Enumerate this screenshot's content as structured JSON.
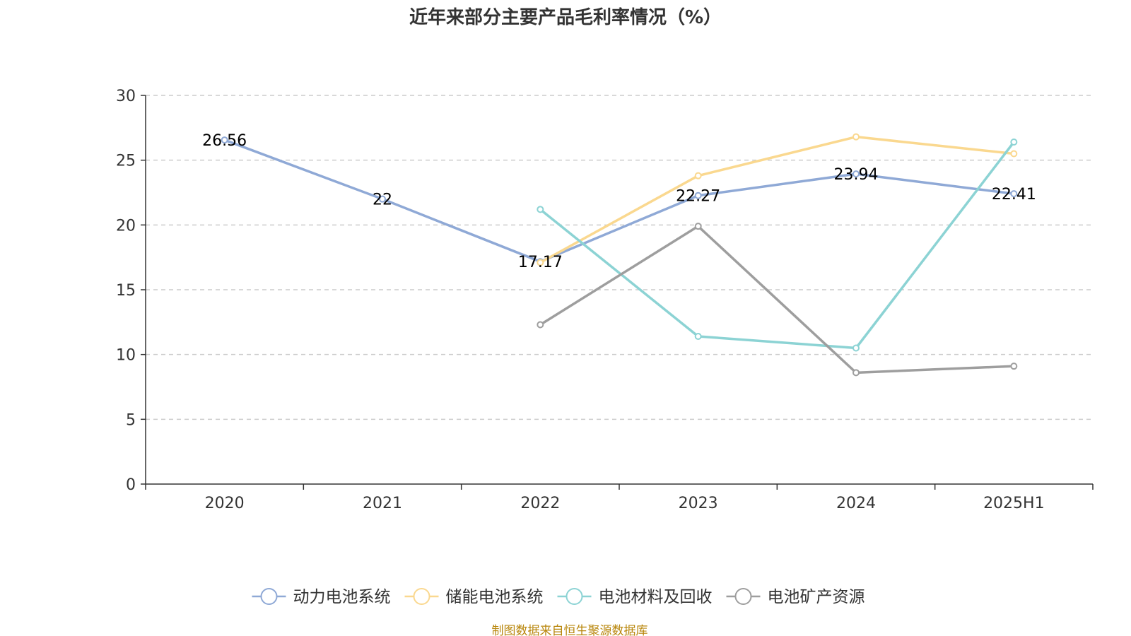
{
  "chart_data": {
    "type": "line",
    "title": "近年来部分主要产品毛利率情况（%）",
    "categories": [
      "2020",
      "2021",
      "2022",
      "2023",
      "2024",
      "2025H1"
    ],
    "ylim": [
      0,
      30
    ],
    "yticks": [
      0,
      5,
      10,
      15,
      20,
      25,
      30
    ],
    "grid": true,
    "legend_position": "bottom",
    "series": [
      {
        "name": "动力电池系统",
        "color": "#8fa9d6",
        "values": [
          26.56,
          22,
          17.17,
          22.27,
          23.94,
          22.41
        ],
        "labels": [
          "26.56",
          "22",
          "17.17",
          "22.27",
          "23.94",
          "22.41"
        ]
      },
      {
        "name": "储能电池系统",
        "color": "#fad88f",
        "values": [
          null,
          null,
          17.1,
          23.8,
          26.8,
          25.5
        ]
      },
      {
        "name": "电池材料及回收",
        "color": "#8cd3d4",
        "values": [
          null,
          null,
          21.2,
          11.4,
          10.5,
          26.4
        ]
      },
      {
        "name": "电池矿产资源",
        "color": "#9e9e9e",
        "values": [
          null,
          null,
          12.3,
          19.9,
          8.6,
          9.1
        ]
      }
    ],
    "source": "制图数据来自恒生聚源数据库"
  }
}
